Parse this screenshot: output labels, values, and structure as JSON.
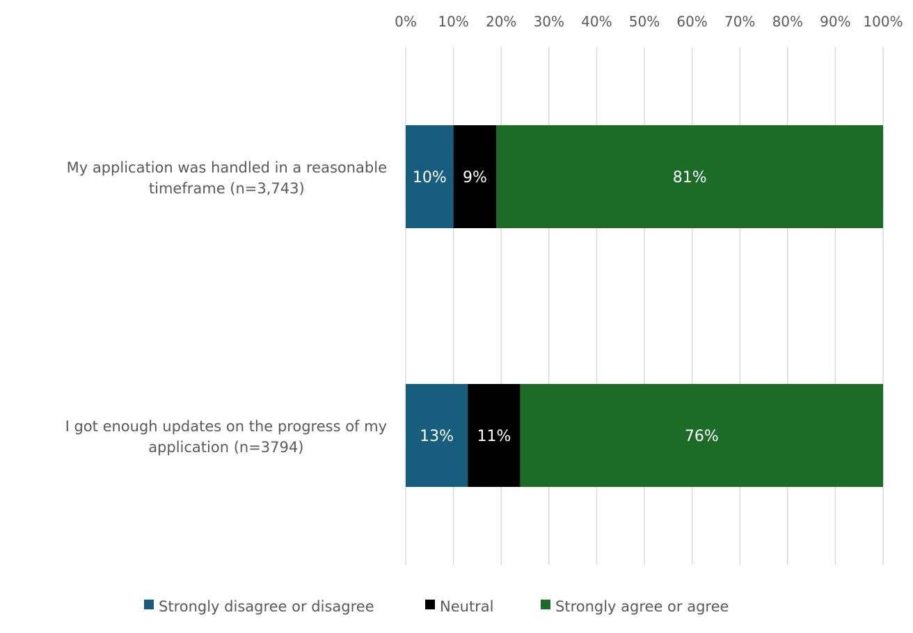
{
  "chart_data": {
    "type": "bar",
    "orientation": "horizontal",
    "stacked": true,
    "percent": true,
    "categories": [
      "My application was handled in a reasonable timeframe (n=3,743)",
      "I got enough updates on the progress of my application (n=3794)"
    ],
    "category_lines": [
      [
        "My application was handled in a reasonable",
        "timeframe (n=3,743)"
      ],
      [
        "I got enough updates on the progress of my",
        "application (n=3794)"
      ]
    ],
    "series": [
      {
        "name": "Strongly disagree or disagree",
        "values": [
          10,
          13
        ],
        "labels": [
          "10%",
          "13%"
        ],
        "color": "#175e7e"
      },
      {
        "name": "Neutral",
        "values": [
          9,
          11
        ],
        "labels": [
          "9%",
          "11%"
        ],
        "color": "#000000"
      },
      {
        "name": "Strongly agree or agree",
        "values": [
          81,
          76
        ],
        "labels": [
          "81%",
          "76%"
        ],
        "color": "#1c6b27"
      }
    ],
    "xlim": [
      0,
      100
    ],
    "xticks": [
      "0%",
      "10%",
      "20%",
      "30%",
      "40%",
      "50%",
      "60%",
      "70%",
      "80%",
      "90%",
      "100%"
    ],
    "x_axis_position": "top",
    "grid": true,
    "legend": "bottom"
  }
}
